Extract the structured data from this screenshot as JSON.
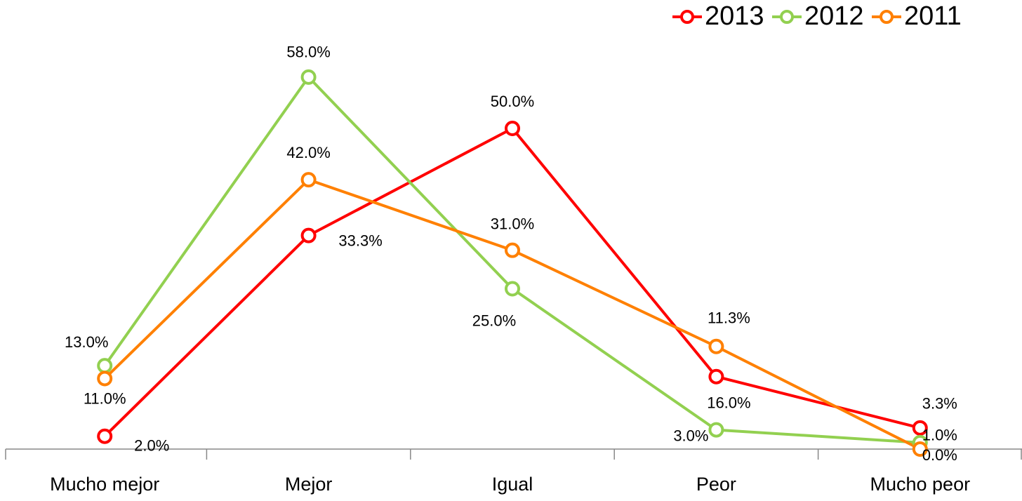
{
  "chart_data": {
    "type": "line",
    "categories": [
      "Mucho mejor",
      "Mejor",
      "Igual",
      "Peor",
      "Mucho peor"
    ],
    "series": [
      {
        "name": "2013",
        "color": "#ff0000",
        "values": [
          2.0,
          33.3,
          50.0,
          11.3,
          3.3
        ],
        "value_labels": [
          "2.0%",
          "33.3%",
          "50.0%",
          "11.3%",
          "3.3%"
        ]
      },
      {
        "name": "2012",
        "color": "#92d050",
        "values": [
          13.0,
          58.0,
          25.0,
          3.0,
          1.0
        ],
        "value_labels": [
          "13.0%",
          "58.0%",
          "25.0%",
          "3.0%",
          "1.0%"
        ]
      },
      {
        "name": "2011",
        "color": "#ff8000",
        "values": [
          11.0,
          42.0,
          31.0,
          16.0,
          0.0
        ],
        "value_labels": [
          "11.0%",
          "42.0%",
          "31.0%",
          "16.0%",
          "0.0%"
        ]
      }
    ],
    "ylim": [
      0,
      60
    ],
    "legend": "top-right"
  }
}
